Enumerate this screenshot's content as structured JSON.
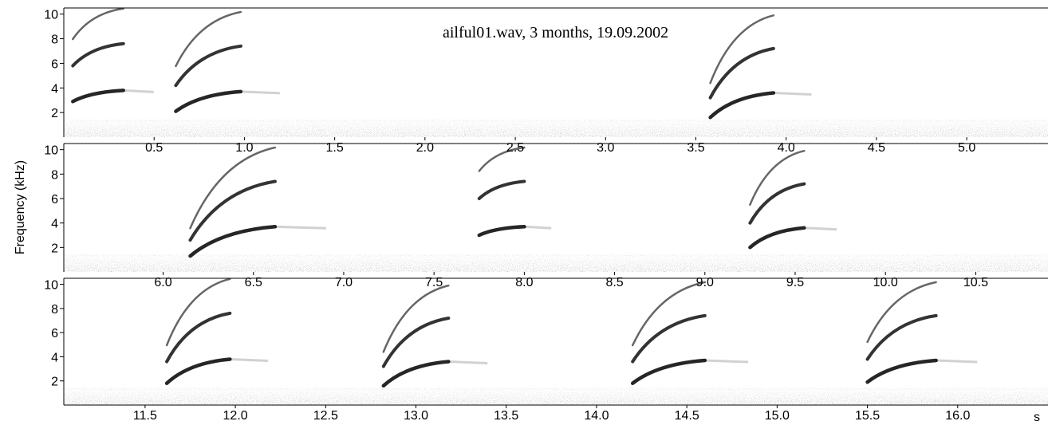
{
  "chart_data": {
    "type": "heatmap",
    "title": "ailful01.wav, 3 months, 19.09.2002",
    "ylabel": "Frequency (kHz)",
    "x_unit": "s",
    "ink_color": "#000000",
    "background_color": "#ffffff",
    "grid": false,
    "legend": "none",
    "ylim": [
      0,
      10.5
    ],
    "y_ticks": [
      2,
      4,
      6,
      8,
      10
    ],
    "y_tick_labels": [
      "2",
      "4",
      "6",
      "8",
      "10"
    ],
    "panels": [
      {
        "xlim": [
          0,
          5.45
        ],
        "x_ticks": [
          0.5,
          1.0,
          1.5,
          2.0,
          2.5,
          3.0,
          3.5,
          4.0,
          4.5,
          5.0
        ],
        "x_tick_labels": [
          "0.5",
          "1.0",
          "1.5",
          "2.0",
          "2.5",
          "3.0",
          "3.5",
          "4.0",
          "4.5",
          "5.0"
        ],
        "calls": [
          {
            "start": 0.05,
            "end": 0.33,
            "f_start": 2.9,
            "f_end": 3.8
          },
          {
            "start": 0.62,
            "end": 0.98,
            "f_start": 2.1,
            "f_end": 3.7
          },
          {
            "start": 3.58,
            "end": 3.93,
            "f_start": 1.6,
            "f_end": 3.6
          }
        ]
      },
      {
        "xlim": [
          5.45,
          10.9
        ],
        "x_ticks": [
          6.0,
          6.5,
          7.0,
          7.5,
          8.0,
          8.5,
          9.0,
          9.5,
          10.0,
          10.5
        ],
        "x_tick_labels": [
          "6.0",
          "6.5",
          "7.0",
          "7.5",
          "8.0",
          "8.5",
          "9.0",
          "9.5",
          "10.0",
          "10.5"
        ],
        "calls": [
          {
            "start": 6.15,
            "end": 6.62,
            "f_start": 1.3,
            "f_end": 3.7
          },
          {
            "start": 7.75,
            "end": 8.0,
            "f_start": 3.0,
            "f_end": 3.7
          },
          {
            "start": 9.25,
            "end": 9.55,
            "f_start": 2.0,
            "f_end": 3.6
          }
        ]
      },
      {
        "xlim": [
          11.05,
          16.5
        ],
        "x_ticks": [
          11.5,
          12.0,
          12.5,
          13.0,
          13.5,
          14.0,
          14.5,
          15.0,
          15.5,
          16.0
        ],
        "x_tick_labels": [
          "11.5",
          "12.0",
          "12.5",
          "13.0",
          "13.5",
          "14.0",
          "14.5",
          "15.0",
          "15.5",
          "16.0"
        ],
        "calls": [
          {
            "start": 11.62,
            "end": 11.97,
            "f_start": 1.8,
            "f_end": 3.8
          },
          {
            "start": 12.82,
            "end": 13.18,
            "f_start": 1.6,
            "f_end": 3.6
          },
          {
            "start": 14.2,
            "end": 14.6,
            "f_start": 1.8,
            "f_end": 3.7
          },
          {
            "start": 15.5,
            "end": 15.88,
            "f_start": 1.9,
            "f_end": 3.7
          }
        ]
      }
    ]
  }
}
